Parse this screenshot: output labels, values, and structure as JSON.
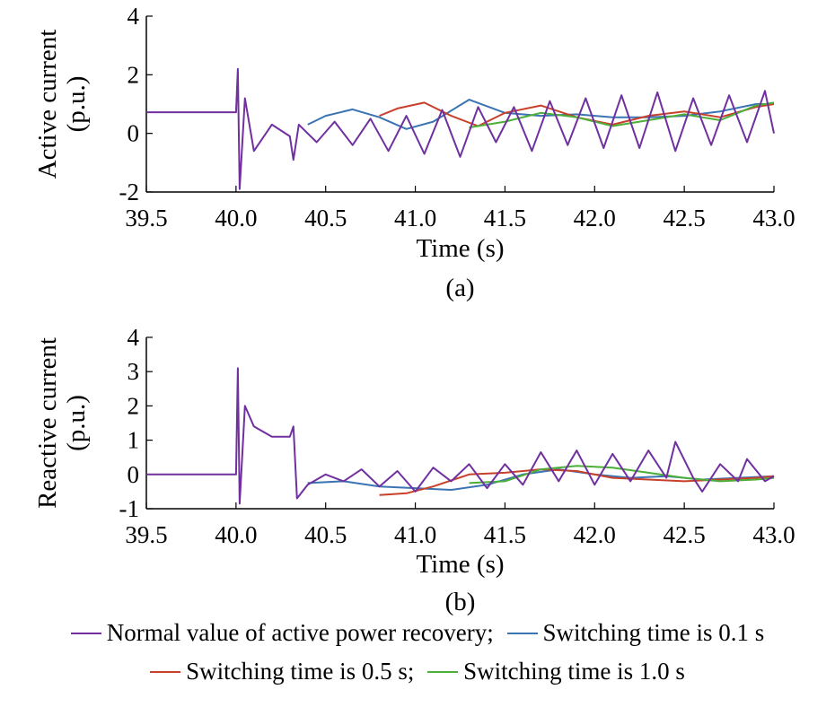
{
  "legend": {
    "line1": [
      {
        "series": "normal",
        "label": "Normal value of active power recovery;"
      },
      {
        "series": "s01",
        "label": "Switching time is 0.1 s"
      }
    ],
    "line2": [
      {
        "series": "s05",
        "label": "Switching time is 0.5 s;"
      },
      {
        "series": "s10",
        "label": "Switching time is 1.0 s"
      }
    ]
  },
  "colors": {
    "normal": "#7030a0",
    "s01": "#3a74b3",
    "s05": "#c8402a",
    "s10": "#4caf38"
  },
  "chart_data": [
    {
      "type": "line",
      "subplot_label": "(a)",
      "ylabel": "Active current\n(p.u.)",
      "xlabel": "Time (s)",
      "xlim": [
        39.5,
        43.0
      ],
      "ylim": [
        -2,
        4
      ],
      "xticks": [
        "39.5",
        "40.0",
        "40.5",
        "41.0",
        "41.5",
        "42.0",
        "42.5",
        "43.0"
      ],
      "yticks": [
        "-2",
        "0",
        "2",
        "4"
      ],
      "series": [
        {
          "key": "normal",
          "name": "Normal value of active power recovery",
          "x": [
            39.5,
            40.0,
            40.01,
            40.02,
            40.05,
            40.1,
            40.2,
            40.3,
            40.32,
            40.35,
            40.45,
            40.55,
            40.65,
            40.75,
            40.85,
            40.95,
            41.05,
            41.15,
            41.25,
            41.35,
            41.45,
            41.55,
            41.65,
            41.75,
            41.85,
            41.95,
            42.05,
            42.15,
            42.25,
            42.35,
            42.45,
            42.55,
            42.65,
            42.75,
            42.85,
            42.95,
            43.0
          ],
          "y": [
            0.72,
            0.72,
            2.2,
            -1.9,
            1.2,
            -0.6,
            0.3,
            -0.1,
            -0.9,
            0.3,
            -0.3,
            0.4,
            -0.4,
            0.5,
            -0.6,
            0.6,
            -0.7,
            0.8,
            -0.8,
            0.9,
            -0.3,
            0.9,
            -0.6,
            1.1,
            -0.4,
            1.2,
            -0.5,
            1.3,
            -0.5,
            1.4,
            -0.6,
            1.2,
            -0.4,
            1.3,
            -0.3,
            1.45,
            0.0
          ]
        },
        {
          "key": "s01",
          "name": "Switching time is 0.1 s",
          "x": [
            40.4,
            40.5,
            40.65,
            40.8,
            40.95,
            41.1,
            41.3,
            41.5,
            41.7,
            41.9,
            42.1,
            42.3,
            42.5,
            42.7,
            42.9,
            43.0
          ],
          "y": [
            0.3,
            0.6,
            0.82,
            0.55,
            0.15,
            0.4,
            1.15,
            0.7,
            0.6,
            0.65,
            0.55,
            0.55,
            0.6,
            0.75,
            1.0,
            1.0
          ]
        },
        {
          "key": "s05",
          "name": "Switching time is 0.5 s",
          "x": [
            40.8,
            40.9,
            41.05,
            41.2,
            41.35,
            41.5,
            41.7,
            41.9,
            42.1,
            42.3,
            42.5,
            42.7,
            42.9,
            43.0
          ],
          "y": [
            0.6,
            0.85,
            1.05,
            0.6,
            0.25,
            0.7,
            0.95,
            0.55,
            0.3,
            0.6,
            0.75,
            0.55,
            0.9,
            1.0
          ]
        },
        {
          "key": "s10",
          "name": "Switching time is 1.0 s",
          "x": [
            41.3,
            41.5,
            41.7,
            41.9,
            42.1,
            42.3,
            42.5,
            42.7,
            42.9,
            43.0
          ],
          "y": [
            0.2,
            0.4,
            0.7,
            0.55,
            0.25,
            0.45,
            0.65,
            0.45,
            0.95,
            1.05
          ]
        }
      ]
    },
    {
      "type": "line",
      "subplot_label": "(b)",
      "ylabel": "Reactive current\n(p.u.)",
      "xlabel": "Time (s)",
      "xlim": [
        39.5,
        43.0
      ],
      "ylim": [
        -1,
        4
      ],
      "xticks": [
        "39.5",
        "40.0",
        "40.5",
        "41.0",
        "41.5",
        "42.0",
        "42.5",
        "43.0"
      ],
      "yticks": [
        "-1",
        "0",
        "1",
        "2",
        "3",
        "4"
      ],
      "series": [
        {
          "key": "normal",
          "name": "Normal value of active power recovery",
          "x": [
            39.5,
            40.0,
            40.01,
            40.02,
            40.05,
            40.1,
            40.2,
            40.3,
            40.32,
            40.34,
            40.4,
            40.5,
            40.6,
            40.7,
            40.8,
            40.9,
            41.0,
            41.1,
            41.2,
            41.3,
            41.4,
            41.5,
            41.6,
            41.7,
            41.8,
            41.9,
            42.0,
            42.1,
            42.2,
            42.3,
            42.4,
            42.45,
            42.55,
            42.6,
            42.7,
            42.8,
            42.85,
            42.95,
            43.0
          ],
          "y": [
            0.0,
            0.0,
            3.1,
            -0.85,
            2.0,
            1.4,
            1.1,
            1.1,
            1.4,
            -0.7,
            -0.3,
            0.0,
            -0.2,
            0.15,
            -0.35,
            0.1,
            -0.5,
            0.2,
            -0.2,
            0.3,
            -0.4,
            0.3,
            -0.3,
            0.65,
            -0.2,
            0.7,
            -0.3,
            0.6,
            -0.2,
            0.7,
            -0.1,
            0.95,
            -0.1,
            -0.5,
            0.3,
            -0.2,
            0.45,
            -0.2,
            -0.05
          ]
        },
        {
          "key": "s01",
          "name": "Switching time is 0.1 s",
          "x": [
            40.4,
            40.6,
            40.8,
            41.0,
            41.2,
            41.4,
            41.6,
            41.8,
            42.0,
            42.2,
            42.4,
            42.6,
            42.8,
            43.0
          ],
          "y": [
            -0.25,
            -0.2,
            -0.35,
            -0.4,
            -0.45,
            -0.3,
            0.0,
            0.15,
            0.0,
            -0.1,
            -0.05,
            -0.15,
            -0.1,
            -0.05
          ]
        },
        {
          "key": "s05",
          "name": "Switching time is 0.5 s",
          "x": [
            40.8,
            40.95,
            41.1,
            41.3,
            41.5,
            41.7,
            41.9,
            42.1,
            42.3,
            42.5,
            42.7,
            42.9,
            43.0
          ],
          "y": [
            -0.6,
            -0.55,
            -0.35,
            0.0,
            0.05,
            0.15,
            0.1,
            -0.1,
            -0.15,
            -0.2,
            -0.15,
            -0.1,
            -0.05
          ]
        },
        {
          "key": "s10",
          "name": "Switching time is 1.0 s",
          "x": [
            41.3,
            41.5,
            41.7,
            41.9,
            42.1,
            42.3,
            42.5,
            42.7,
            42.9,
            43.0
          ],
          "y": [
            -0.25,
            -0.2,
            0.15,
            0.25,
            0.2,
            0.05,
            -0.1,
            -0.2,
            -0.15,
            -0.1
          ]
        }
      ]
    }
  ]
}
